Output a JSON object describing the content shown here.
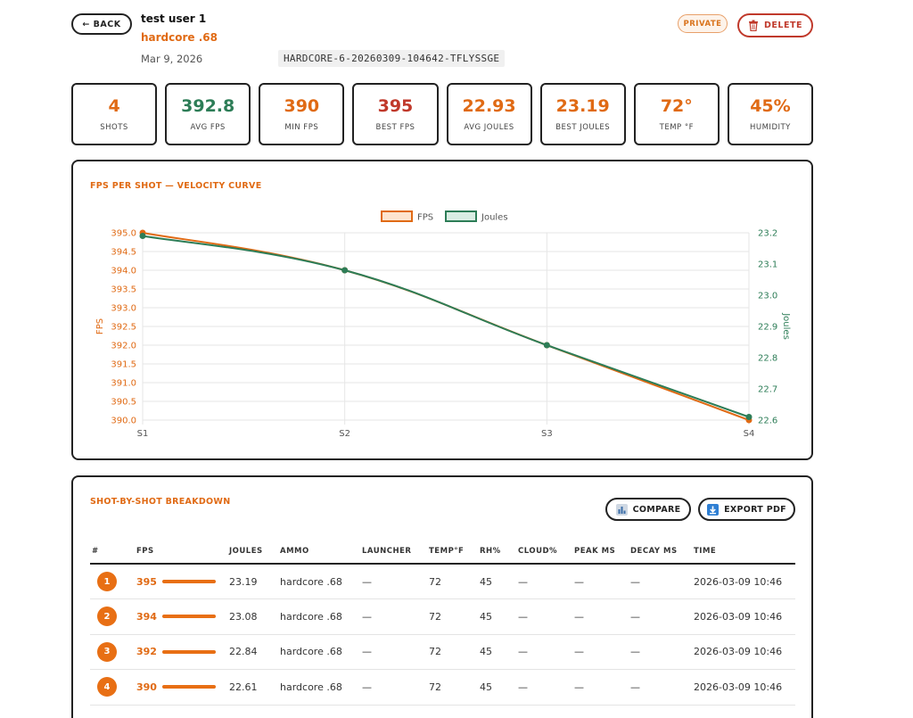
{
  "header": {
    "back_label": "← BACK",
    "user_name": "test user 1",
    "session_name": "hardcore .68",
    "date": "Mar 9, 2026",
    "session_id": "HARDCORE-6-20260309-104642-TFLYSSGE",
    "private_label": "PRIVATE",
    "delete_label": "DELETE"
  },
  "stats": [
    {
      "value": "4",
      "label": "SHOTS",
      "tone": "orange"
    },
    {
      "value": "392.8",
      "label": "AVG FPS",
      "tone": "green"
    },
    {
      "value": "390",
      "label": "MIN FPS",
      "tone": "orange"
    },
    {
      "value": "395",
      "label": "BEST FPS",
      "tone": "red"
    },
    {
      "value": "22.93",
      "label": "AVG JOULES",
      "tone": "orange"
    },
    {
      "value": "23.19",
      "label": "BEST JOULES",
      "tone": "orange"
    },
    {
      "value": "72°",
      "label": "TEMP °F",
      "tone": "orange"
    },
    {
      "value": "45%",
      "label": "HUMIDITY",
      "tone": "orange"
    }
  ],
  "chart_card": {
    "title": "FPS PER SHOT — VELOCITY CURVE"
  },
  "chart_data": {
    "type": "line",
    "x": [
      "S1",
      "S2",
      "S3",
      "S4"
    ],
    "series": [
      {
        "name": "FPS",
        "values": [
          395,
          394,
          392,
          390
        ],
        "axis": "left",
        "color": "#e06a14"
      },
      {
        "name": "Joules",
        "values": [
          23.19,
          23.08,
          22.84,
          22.61
        ],
        "axis": "right",
        "color": "#2d7d57"
      }
    ],
    "ylabel": "FPS",
    "y2label": "Joules",
    "ylim": [
      390,
      395
    ],
    "y2lim": [
      22.6,
      23.2
    ],
    "yticks": [
      "395.0",
      "394.5",
      "394.0",
      "393.5",
      "393.0",
      "392.5",
      "392.0",
      "391.5",
      "391.0",
      "390.5",
      "390.0"
    ],
    "y2ticks": [
      "23.2",
      "23.1",
      "23.0",
      "22.9",
      "22.8",
      "22.7",
      "22.6"
    ],
    "grid": true,
    "legend": "top-center"
  },
  "table_card": {
    "title": "SHOT-BY-SHOT BREAKDOWN",
    "compare_label": "COMPARE",
    "export_label": "EXPORT PDF",
    "columns": [
      "#",
      "FPS",
      "JOULES",
      "AMMO",
      "LAUNCHER",
      "TEMP°F",
      "RH%",
      "CLOUD%",
      "PEAK MS",
      "DECAY MS",
      "TIME"
    ],
    "rows": [
      {
        "n": "1",
        "fps": "395",
        "fps_fraction": 1.0,
        "joules": "23.19",
        "ammo": "hardcore .68",
        "launcher": "—",
        "temp": "72",
        "rh": "45",
        "cloud": "—",
        "peak": "—",
        "decay": "—",
        "time": "2026-03-09 10:46"
      },
      {
        "n": "2",
        "fps": "394",
        "fps_fraction": 1.0,
        "joules": "23.08",
        "ammo": "hardcore .68",
        "launcher": "—",
        "temp": "72",
        "rh": "45",
        "cloud": "—",
        "peak": "—",
        "decay": "—",
        "time": "2026-03-09 10:46"
      },
      {
        "n": "3",
        "fps": "392",
        "fps_fraction": 1.0,
        "joules": "22.84",
        "ammo": "hardcore .68",
        "launcher": "—",
        "temp": "72",
        "rh": "45",
        "cloud": "—",
        "peak": "—",
        "decay": "—",
        "time": "2026-03-09 10:46"
      },
      {
        "n": "4",
        "fps": "390",
        "fps_fraction": 1.0,
        "joules": "22.61",
        "ammo": "hardcore .68",
        "launcher": "—",
        "temp": "72",
        "rh": "45",
        "cloud": "—",
        "peak": "—",
        "decay": "—",
        "time": "2026-03-09 10:46"
      }
    ]
  },
  "colors": {
    "accent": "#e06a14",
    "green": "#2d7d57",
    "danger": "#c0392b"
  }
}
